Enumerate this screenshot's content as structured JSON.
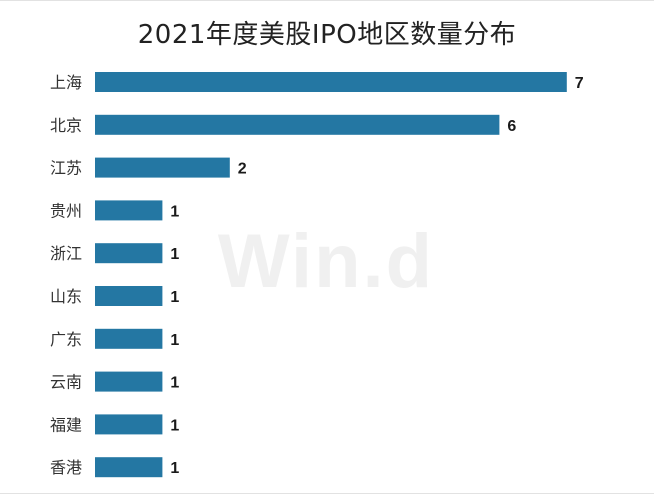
{
  "watermark": "Win.d",
  "chart_data": {
    "type": "bar",
    "orientation": "horizontal",
    "title": "2021年度美股IPO地区数量分布",
    "categories": [
      "上海",
      "北京",
      "江苏",
      "贵州",
      "浙江",
      "山东",
      "广东",
      "云南",
      "福建",
      "香港"
    ],
    "values": [
      7,
      6,
      2,
      1,
      1,
      1,
      1,
      1,
      1,
      1
    ],
    "bar_color": "#2477a3",
    "grid": false,
    "legend": "none"
  }
}
